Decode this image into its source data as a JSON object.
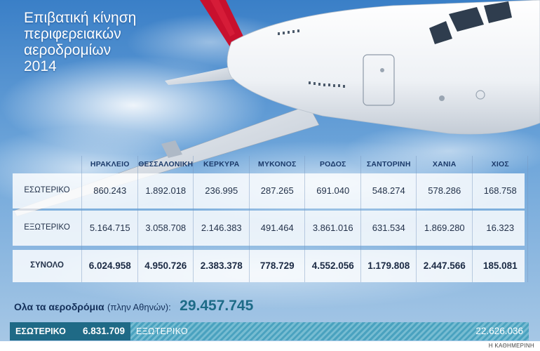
{
  "header": {
    "title_lines": [
      "Επιβατική κίνηση",
      "περιφερειακών",
      "αεροδρομίων",
      "2014"
    ]
  },
  "chart_data": {
    "type": "table",
    "categories": [
      "ΗΡΑΚΛΕΙΟ",
      "ΘΕΣΣΑΛΟΝΙΚΗ",
      "ΚΕΡΚΥΡΑ",
      "ΜΥΚΟΝΟΣ",
      "ΡΟΔΟΣ",
      "ΣΑΝΤΟΡΙΝΗ",
      "ΧΑΝΙΑ",
      "ΧΙΟΣ"
    ],
    "rows": [
      {
        "label": "ΕΣΩΤΕΡΙΚΟ",
        "values": [
          "860.243",
          "1.892.018",
          "236.995",
          "287.265",
          "691.040",
          "548.274",
          "578.286",
          "168.758"
        ]
      },
      {
        "label": "ΕΞΩΤΕΡΙΚΟ",
        "values": [
          "5.164.715",
          "3.058.708",
          "2.146.383",
          "491.464",
          "3.861.016",
          "631.534",
          "1.869.280",
          "16.323"
        ]
      },
      {
        "label": "ΣΥΝΟΛΟ",
        "values": [
          "6.024.958",
          "4.950.726",
          "2.383.378",
          "778.729",
          "4.552.056",
          "1.179.808",
          "2.447.566",
          "185.081"
        ]
      }
    ],
    "total": {
      "label": "Ολα τα αεροδρόμια",
      "sublabel": "(πλην Αθηνών):",
      "value": "29.457.745"
    },
    "split_bar": {
      "domestic_label": "ΕΣΩΤΕΡΙΚΟ",
      "domestic_value": "6.831.709",
      "domestic_numeric": 6831709,
      "foreign_label": "ΕΞΩΤΕΡΙΚΟ",
      "foreign_value": "22.626.036",
      "foreign_numeric": 22626036
    }
  },
  "colors": {
    "sky": "#4f8fd0",
    "domestic_bar": "#1f6a86",
    "foreign_bar": "#5fb0ca",
    "total_value": "#1d6b87"
  },
  "credit": "Η ΚΑΘΗΜΕΡΙΝΗ"
}
